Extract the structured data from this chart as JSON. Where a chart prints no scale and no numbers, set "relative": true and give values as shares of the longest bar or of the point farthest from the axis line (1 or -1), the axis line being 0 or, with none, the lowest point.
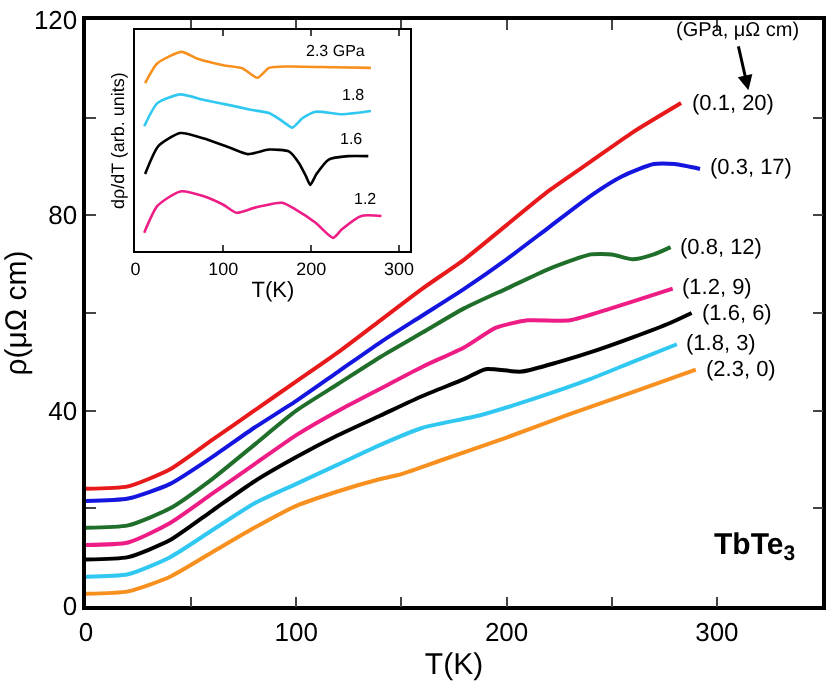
{
  "chart_data": [
    {
      "type": "line",
      "xlabel": "T(K)",
      "ylabel": "ρ(μΩ cm)",
      "xlim": [
        0,
        350
      ],
      "ylim": [
        0,
        120
      ],
      "xticks": [
        0,
        {
          "value": 50,
          "label": null
        },
        100,
        {
          "value": 150,
          "label": null
        },
        200,
        {
          "value": 250,
          "label": null
        },
        300
      ],
      "yticks": [
        0,
        {
          "value": 20,
          "label": null
        },
        40,
        {
          "value": 60,
          "label": null
        },
        80,
        {
          "value": 100,
          "label": null
        },
        120
      ],
      "legend": false,
      "marker": "none",
      "line_style": "solid",
      "annotations": [
        "(GPa, μΩ cm)",
        "TbTe$_{3}$"
      ],
      "series": [
        {
          "name": "(0.1, 20)",
          "color": "#e8191b",
          "x": [
            0,
            20,
            40,
            60,
            80,
            100,
            120,
            140,
            160,
            180,
            200,
            220,
            240,
            260,
            283
          ],
          "values": [
            24,
            24.5,
            28,
            34,
            40,
            46,
            52,
            58.5,
            65,
            71,
            78,
            85,
            91,
            97,
            103
          ]
        },
        {
          "name": "(0.3, 17)",
          "color": "#1515e0",
          "x": [
            0,
            20,
            40,
            60,
            80,
            100,
            120,
            140,
            160,
            180,
            200,
            220,
            240,
            255,
            270,
            280,
            292
          ],
          "values": [
            21.5,
            22,
            25,
            30.5,
            36.5,
            42,
            48,
            54,
            59.5,
            65,
            71,
            77.5,
            84,
            88,
            90.5,
            90.5,
            89.5
          ]
        },
        {
          "name": "(0.8, 12)",
          "color": "#1f6e2a",
          "x": [
            0,
            20,
            40,
            60,
            80,
            100,
            120,
            140,
            160,
            180,
            200,
            220,
            240,
            250,
            260,
            270,
            278
          ],
          "values": [
            16,
            16.5,
            20,
            26,
            33,
            40,
            45.5,
            51,
            56,
            61,
            65,
            69,
            72,
            72,
            71,
            72,
            73.5
          ]
        },
        {
          "name": "(1.2, 9)",
          "color": "#ee1c85",
          "x": [
            0,
            20,
            40,
            60,
            80,
            100,
            120,
            140,
            160,
            180,
            195,
            210,
            230,
            250,
            279
          ],
          "values": [
            12.5,
            13,
            17,
            23,
            29,
            35,
            40,
            44.5,
            49,
            53,
            57,
            58.5,
            58.5,
            61,
            65
          ]
        },
        {
          "name": "(1.6, 6)",
          "color": "#000000",
          "x": [
            0,
            20,
            40,
            60,
            80,
            100,
            120,
            140,
            160,
            180,
            190,
            207,
            225,
            243,
            260,
            278,
            288
          ],
          "values": [
            9.5,
            10,
            13.5,
            19.5,
            25.5,
            30.5,
            35,
            39,
            43,
            46.5,
            48.5,
            48,
            50,
            52.4,
            55,
            58,
            60
          ]
        },
        {
          "name": "(1.8, 3)",
          "color": "#30c8f0",
          "x": [
            0,
            20,
            40,
            60,
            80,
            100,
            120,
            140,
            160,
            187,
            212,
            240,
            260,
            281
          ],
          "values": [
            6,
            6.5,
            10,
            15.5,
            21,
            25,
            29,
            33,
            36.5,
            39,
            42.3,
            46.5,
            50,
            53.6
          ]
        },
        {
          "name": "(2.3, 0)",
          "color": "#f7901e",
          "x": [
            0,
            20,
            40,
            60,
            80,
            100,
            120,
            140,
            150,
            170,
            200,
            230,
            260,
            290
          ],
          "values": [
            2.5,
            3,
            6,
            11,
            16,
            20.5,
            23.5,
            26,
            27,
            30,
            34.5,
            39.3,
            43.8,
            48.4
          ]
        }
      ]
    },
    {
      "type": "line",
      "xlabel": "T(K)",
      "ylabel": "dρ/dT (arb. units)",
      "relative": true,
      "xlim": [
        0,
        313
      ],
      "xticks": [
        0,
        100,
        200,
        300
      ],
      "legend": false,
      "marker": "none",
      "line_style": "solid",
      "tick_labels": "x",
      "series": [
        {
          "name": "2.3 GPa",
          "color": "#f7901e",
          "x": [
            11,
            25,
            52.5,
            70,
            100,
            122,
            139,
            152,
            175,
            227,
            268
          ],
          "values": [
            0.843,
            0.943,
            1.0,
            0.967,
            0.933,
            0.917,
            0.87,
            0.92,
            0.927,
            0.923,
            0.92
          ]
        },
        {
          "name": "1.8",
          "color": "#30c8f0",
          "x": [
            10,
            25,
            51,
            77,
            107,
            131,
            152,
            167,
            178.5,
            190,
            205,
            235,
            268
          ],
          "values": [
            0.627,
            0.743,
            0.787,
            0.76,
            0.733,
            0.71,
            0.693,
            0.653,
            0.62,
            0.667,
            0.7,
            0.687,
            0.703
          ]
        },
        {
          "name": "1.6",
          "color": "#000000",
          "x": [
            11,
            26,
            51,
            77,
            107,
            128,
            152,
            175,
            186,
            194,
            199,
            206,
            220,
            242,
            265
          ],
          "values": [
            0.387,
            0.527,
            0.593,
            0.567,
            0.52,
            0.487,
            0.51,
            0.5,
            0.443,
            0.377,
            0.333,
            0.387,
            0.46,
            0.477,
            0.477
          ]
        },
        {
          "name": "1.2",
          "color": "#ee1c85",
          "x": [
            10,
            25,
            51,
            77,
            100,
            115,
            137,
            167,
            182,
            205,
            225,
            235,
            257,
            280
          ],
          "values": [
            0.093,
            0.227,
            0.3,
            0.277,
            0.233,
            0.193,
            0.22,
            0.243,
            0.21,
            0.143,
            0.067,
            0.11,
            0.177,
            0.177
          ]
        }
      ]
    }
  ]
}
